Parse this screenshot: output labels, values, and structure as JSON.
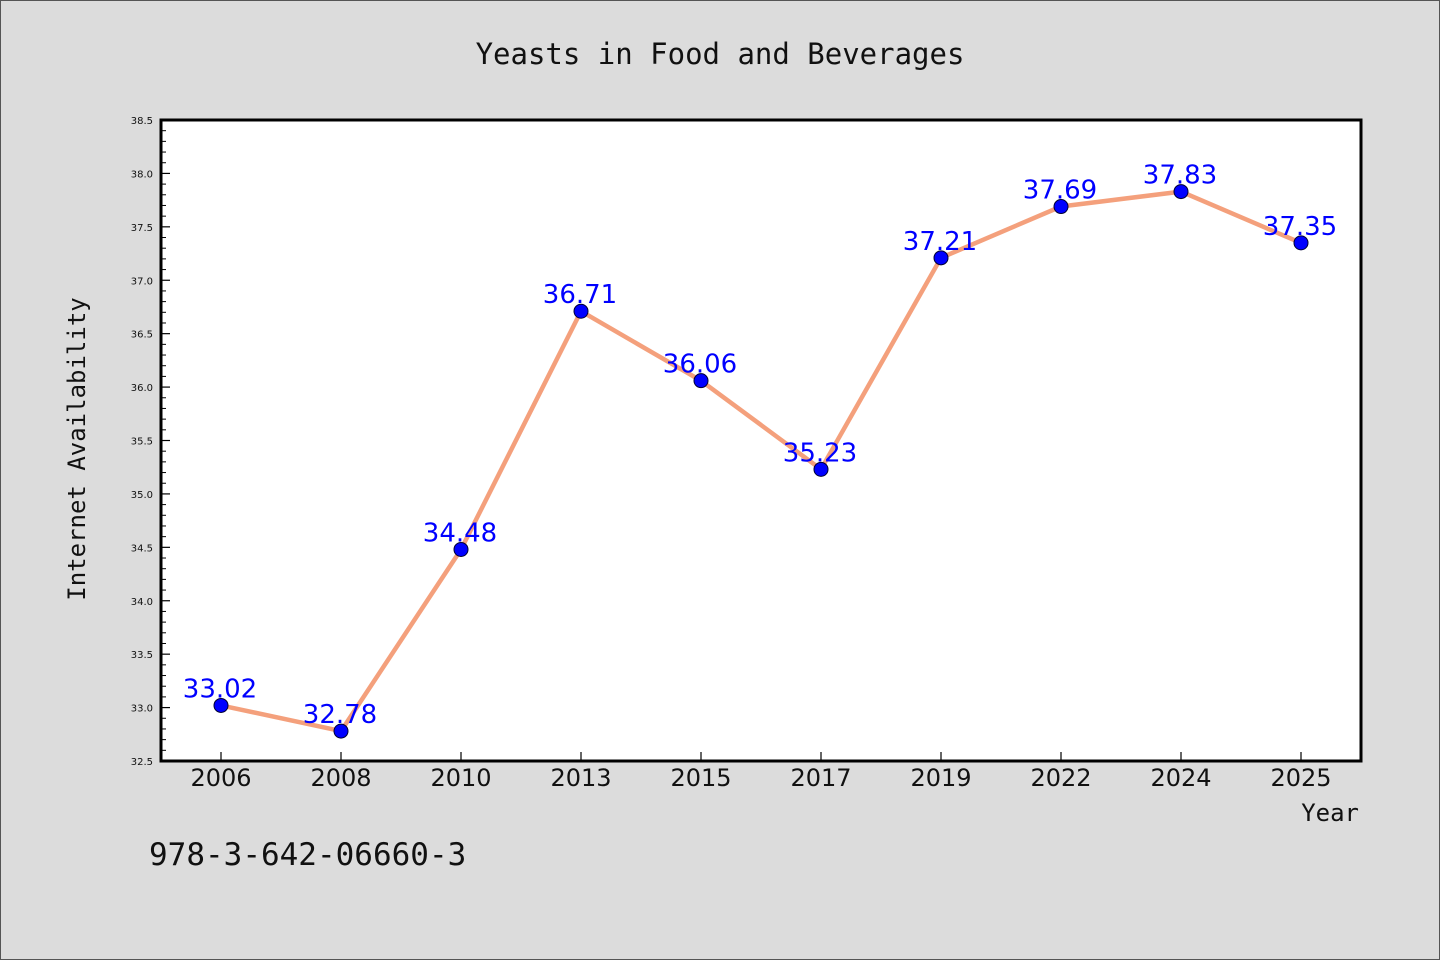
{
  "footer_code": "978-3-642-06660-3",
  "chart_data": {
    "type": "line",
    "title": "Yeasts in Food and Beverages",
    "xlabel": "Year",
    "ylabel": "Internet Availability",
    "categories": [
      "2006",
      "2008",
      "2010",
      "2013",
      "2015",
      "2017",
      "2019",
      "2022",
      "2024",
      "2025"
    ],
    "values": [
      33.02,
      32.78,
      34.48,
      36.71,
      36.06,
      35.23,
      37.21,
      37.69,
      37.83,
      37.35
    ],
    "data_labels": [
      "33.02",
      "32.78",
      "34.48",
      "36.71",
      "36.06",
      "35.23",
      "37.21",
      "37.69",
      "37.83",
      "37.35"
    ],
    "ylim": [
      32.5,
      38.5
    ],
    "yticks": [
      "32.5",
      "33.0",
      "33.5",
      "34.0",
      "34.5",
      "35.0",
      "35.5",
      "36.0",
      "36.5",
      "37.0",
      "37.5",
      "38.0",
      "38.5"
    ],
    "grid": false,
    "colors": {
      "line": "#f4a07c",
      "marker": "#0000ff",
      "label": "#0000ff",
      "background": "#dcdcdc",
      "plot_background": "#ffffff"
    }
  }
}
